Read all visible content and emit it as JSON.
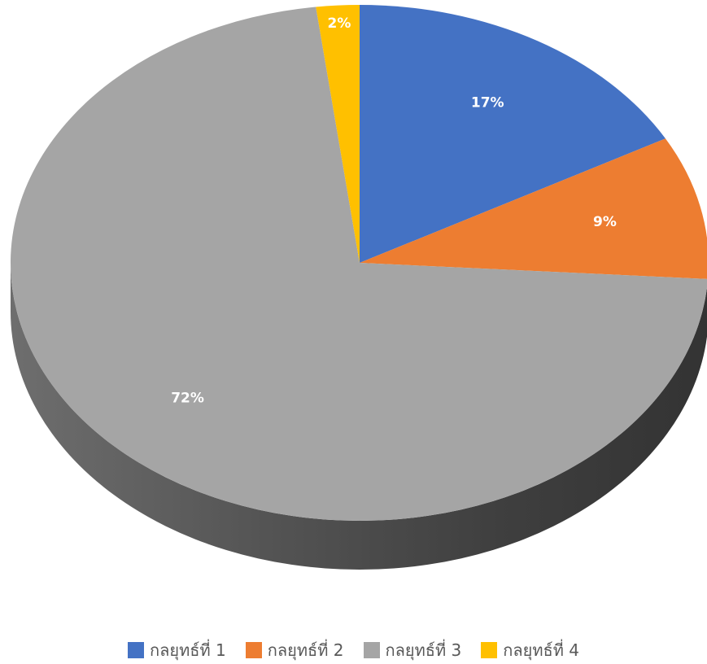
{
  "chart_data": {
    "type": "pie",
    "categories": [
      "กลยุทธ์ที่ 1",
      "กลยุทธ์ที่ 2",
      "กลยุทธ์ที่ 3",
      "กลยุทธ์ที่ 4"
    ],
    "values": [
      17,
      9,
      72,
      2
    ],
    "data_labels": [
      "17%",
      "9%",
      "72%",
      "2%"
    ],
    "colors": [
      "#4472C4",
      "#ED7D31",
      "#A5A5A5",
      "#FFC000"
    ],
    "style": "3d",
    "legend_position": "bottom"
  }
}
